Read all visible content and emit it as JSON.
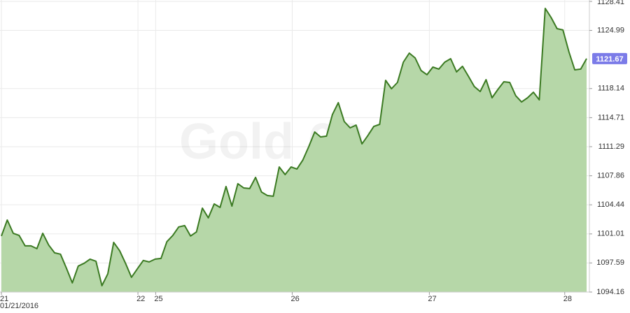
{
  "chart_data": {
    "type": "area",
    "watermark": "Gold 60m",
    "values": [
      1100.76,
      1102.65,
      1101.08,
      1100.84,
      1099.6,
      1099.6,
      1099.27,
      1101.08,
      1099.69,
      1098.78,
      1098.62,
      1096.97,
      1095.24,
      1097.22,
      1097.55,
      1098.04,
      1097.79,
      1094.91,
      1096.31,
      1100.01,
      1099.03,
      1097.55,
      1095.9,
      1096.89,
      1097.88,
      1097.71,
      1098.04,
      1098.12,
      1100.1,
      1100.84,
      1101.83,
      1101.99,
      1100.76,
      1101.25,
      1104.05,
      1102.9,
      1104.54,
      1104.13,
      1106.6,
      1104.29,
      1106.93,
      1106.43,
      1106.35,
      1107.67,
      1105.94,
      1105.53,
      1105.45,
      1108.9,
      1108.0,
      1108.9,
      1108.66,
      1109.73,
      1111.29,
      1113.02,
      1112.44,
      1112.53,
      1115.08,
      1116.48,
      1114.25,
      1113.51,
      1113.84,
      1111.62,
      1112.61,
      1113.68,
      1113.92,
      1119.11,
      1118.12,
      1118.86,
      1121.25,
      1122.32,
      1121.74,
      1120.26,
      1119.77,
      1120.67,
      1120.43,
      1121.25,
      1121.66,
      1120.1,
      1120.76,
      1119.6,
      1118.37,
      1117.79,
      1119.19,
      1117.05,
      1118.04,
      1118.94,
      1118.86,
      1117.3,
      1116.56,
      1117.05,
      1117.71,
      1116.81,
      1127.59,
      1126.52,
      1125.2,
      1125.04,
      1122.48,
      1120.34,
      1120.43,
      1121.67
    ],
    "color": "#3b7a22",
    "fill": "#b6d7a8",
    "label_color": "#7b7be8",
    "xlim": [
      0,
      99
    ],
    "xticks": [
      {
        "value": 0,
        "label": "21"
      },
      {
        "value": 23.1,
        "label": "22"
      },
      {
        "value": 26.1,
        "label": "25"
      },
      {
        "value": 49.2,
        "label": "26"
      },
      {
        "value": 72.4,
        "label": "27"
      },
      {
        "value": 95.3,
        "label": "28"
      }
    ],
    "start_date": "01/21/2016",
    "ylim": [
      1094.16,
      1128.41
    ],
    "yticks": [
      1094.16,
      1097.59,
      1101.01,
      1104.44,
      1107.86,
      1111.29,
      1114.71,
      1118.14,
      1124.99,
      1128.41
    ],
    "grid": true
  }
}
